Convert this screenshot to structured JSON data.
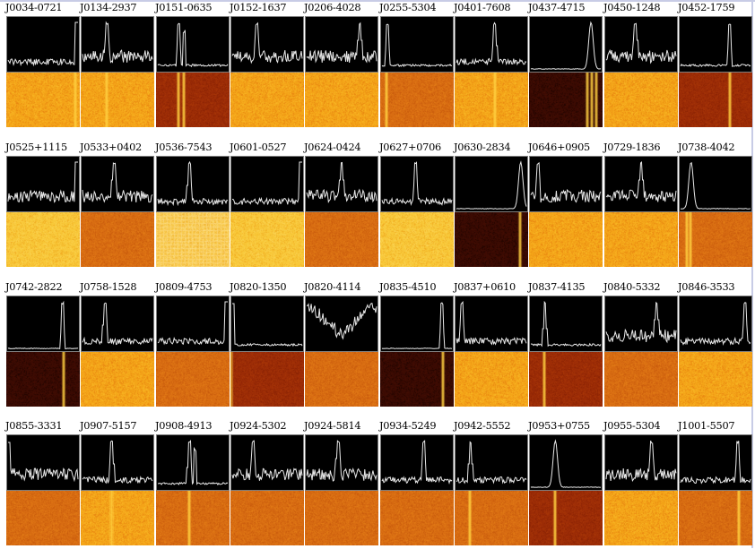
{
  "panels": [
    {
      "name": "J0034-0721",
      "trace": "edge",
      "dyn": "lightorange",
      "bands": [
        0.94
      ]
    },
    {
      "name": "J0134-2937",
      "trace": "peak",
      "peak": 0.35,
      "noise": "high",
      "dyn": "lightorange",
      "bands": [
        0.35
      ]
    },
    {
      "name": "J0151-0635",
      "trace": "double",
      "peak": 0.3,
      "noise": "low",
      "dyn": "darkred",
      "bands": [
        0.3,
        0.38
      ]
    },
    {
      "name": "J0152-1637",
      "trace": "peak",
      "peak": 0.35,
      "noise": "high",
      "dyn": "lightorange",
      "bands": []
    },
    {
      "name": "J0206-4028",
      "trace": "peak",
      "peak": 0.76,
      "noise": "high",
      "dyn": "lightorange",
      "bands": []
    },
    {
      "name": "J0255-5304",
      "trace": "peak",
      "peak": 0.08,
      "noise": "low",
      "dyn": "midorange",
      "bands": [
        0.08
      ]
    },
    {
      "name": "J0401-7608",
      "trace": "peak",
      "peak": 0.55,
      "noise": "mid",
      "dyn": "lightorange",
      "bands": [
        0.55
      ]
    },
    {
      "name": "J0437-4715",
      "trace": "broad",
      "peak": 0.86,
      "noise": "none",
      "dyn": "black",
      "bands": [
        0.8,
        0.86,
        0.92
      ]
    },
    {
      "name": "J0450-1248",
      "trace": "peak",
      "peak": 0.42,
      "noise": "high",
      "dyn": "lightorange",
      "bands": []
    },
    {
      "name": "J0452-1759",
      "trace": "peak",
      "peak": 0.7,
      "noise": "low",
      "dyn": "darkred",
      "bands": [
        0.7
      ]
    },
    {
      "name": "J0525+1115",
      "trace": "edge",
      "noise": "high",
      "dyn": "pale",
      "bands": []
    },
    {
      "name": "J0533+0402",
      "trace": "peak",
      "peak": 0.45,
      "noise": "high",
      "dyn": "midorange",
      "bands": []
    },
    {
      "name": "J0536-7543",
      "trace": "peak",
      "peak": 0.45,
      "noise": "mid",
      "dyn": "palegrid",
      "bands": []
    },
    {
      "name": "J0601-0527",
      "trace": "edge",
      "noise": "mid",
      "dyn": "pale",
      "bands": []
    },
    {
      "name": "J0624-0424",
      "trace": "peak",
      "peak": 0.5,
      "noise": "high",
      "dyn": "midorange",
      "bands": []
    },
    {
      "name": "J0627+0706",
      "trace": "peak",
      "peak": 0.48,
      "noise": "mid",
      "dyn": "pale",
      "bands": []
    },
    {
      "name": "J0630-2834",
      "trace": "broad",
      "peak": 0.92,
      "noise": "none",
      "dyn": "black",
      "bands": [
        0.9
      ]
    },
    {
      "name": "J0646+0905",
      "trace": "peak",
      "peak": 0.1,
      "noise": "high",
      "dyn": "lightorange",
      "bands": []
    },
    {
      "name": "J0729-1836",
      "trace": "peak",
      "peak": 0.5,
      "noise": "high",
      "dyn": "lightorange",
      "bands": []
    },
    {
      "name": "J0738-4042",
      "trace": "broad",
      "peak": 0.15,
      "noise": "low",
      "dyn": "midorange",
      "bands": [
        0.1,
        0.15
      ]
    },
    {
      "name": "J0742-2822",
      "trace": "peak",
      "peak": 0.78,
      "noise": "none",
      "dyn": "black",
      "bands": [
        0.78
      ]
    },
    {
      "name": "J0758-1528",
      "trace": "peak",
      "peak": 0.32,
      "noise": "mid",
      "dyn": "lightorange",
      "bands": []
    },
    {
      "name": "J0809-4753",
      "trace": "edge",
      "noise": "mid",
      "dyn": "midorange",
      "bands": []
    },
    {
      "name": "J0820-1350",
      "trace": "edge-left",
      "noise": "low",
      "dyn": "darkred",
      "bands": [
        0.0
      ]
    },
    {
      "name": "J0820-4114",
      "trace": "valley",
      "noise": "high",
      "dyn": "midorange",
      "bands": []
    },
    {
      "name": "J0835-4510",
      "trace": "peak",
      "peak": 0.86,
      "noise": "none",
      "dyn": "black",
      "bands": [
        0.86
      ]
    },
    {
      "name": "J0837+0610",
      "trace": "peak",
      "peak": 0.08,
      "noise": "mid",
      "dyn": "lightorange",
      "bands": []
    },
    {
      "name": "J0837-4135",
      "trace": "peak",
      "peak": 0.2,
      "noise": "low",
      "dyn": "darkred",
      "bands": [
        0.2
      ]
    },
    {
      "name": "J0840-5332",
      "trace": "peak",
      "peak": 0.72,
      "noise": "high",
      "dyn": "midorange",
      "bands": []
    },
    {
      "name": "J0846-3533",
      "trace": "peak",
      "peak": 0.92,
      "noise": "mid",
      "dyn": "lightorange",
      "bands": []
    },
    {
      "name": "J0855-3331",
      "trace": "edge-left",
      "noise": "high",
      "dyn": "midorange",
      "bands": []
    },
    {
      "name": "J0907-5157",
      "trace": "peak",
      "peak": 0.42,
      "noise": "mid",
      "dyn": "lightorange",
      "bands": [
        0.42
      ]
    },
    {
      "name": "J0908-4913",
      "trace": "double",
      "peak": 0.45,
      "noise": "low",
      "dyn": "midorange",
      "bands": [
        0.45
      ]
    },
    {
      "name": "J0924-5302",
      "trace": "peak",
      "peak": 0.3,
      "noise": "high",
      "dyn": "midorange",
      "bands": []
    },
    {
      "name": "J0924-5814",
      "trace": "peak",
      "peak": 0.45,
      "noise": "high",
      "dyn": "midorange",
      "bands": []
    },
    {
      "name": "J0934-5249",
      "trace": "peak",
      "peak": 0.6,
      "noise": "mid",
      "dyn": "midorange",
      "bands": []
    },
    {
      "name": "J0942-5552",
      "trace": "peak",
      "peak": 0.2,
      "noise": "mid",
      "dyn": "midorange",
      "bands": [
        0.2
      ]
    },
    {
      "name": "J0953+0755",
      "trace": "broad",
      "peak": 0.35,
      "noise": "none",
      "dyn": "darkred",
      "bands": [
        0.35
      ]
    },
    {
      "name": "J0955-5304",
      "trace": "peak",
      "peak": 0.65,
      "noise": "high",
      "dyn": "lightorange",
      "bands": []
    },
    {
      "name": "J1001-5507",
      "trace": "peak",
      "peak": 0.82,
      "noise": "mid",
      "dyn": "midorange",
      "bands": [
        0.82
      ]
    }
  ],
  "palette": {
    "lightorange": [
      "#f4a418",
      "#e88410",
      "#fbc22c"
    ],
    "midorange": [
      "#d86c12",
      "#c85a0c",
      "#e88418"
    ],
    "darkred": [
      "#9c2c06",
      "#8a2204",
      "#b03c08"
    ],
    "black": [
      "#3a0a02",
      "#200400",
      "#4a1004"
    ],
    "pale": [
      "#f8c838",
      "#f0aa20",
      "#fcd860"
    ],
    "palegrid": [
      "#f8c848",
      "#f0b030",
      "#fce080"
    ],
    "band": "#ffd040",
    "trace": "#e8e8e8",
    "profile_bg": "#000000"
  }
}
